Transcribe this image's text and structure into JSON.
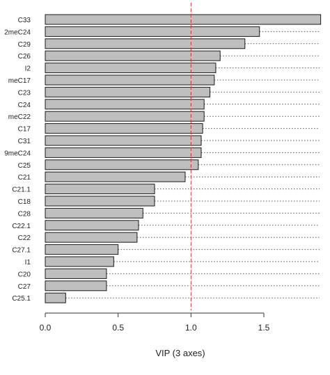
{
  "chart_data": {
    "type": "bar",
    "orientation": "horizontal",
    "categories": [
      "C33",
      "2meC24",
      "C29",
      "C26",
      "I2",
      "meC17",
      "C23",
      "C24",
      "meC22",
      "C17",
      "C31",
      "9meC24",
      "C25",
      "C21",
      "C21.1",
      "C18",
      "C28",
      "C22.1",
      "C22",
      "C27.1",
      "I1",
      "C20",
      "C27",
      "C25.1"
    ],
    "values": [
      1.89,
      1.47,
      1.37,
      1.2,
      1.17,
      1.16,
      1.13,
      1.09,
      1.09,
      1.08,
      1.07,
      1.07,
      1.05,
      0.96,
      0.75,
      0.75,
      0.67,
      0.64,
      0.63,
      0.5,
      0.47,
      0.42,
      0.42,
      0.14
    ],
    "xlabel": "VIP (3 axes)",
    "ylabel": "",
    "title": "",
    "xlim": [
      0,
      1.9
    ],
    "xticks": [
      "0.0",
      "0.5",
      "1.0",
      "1.5"
    ],
    "xtick_values": [
      0,
      0.5,
      1.0,
      1.5
    ],
    "threshold": 1.0,
    "grid": false,
    "leader_lines": "dotted",
    "colors": {
      "bar_fill": "#bebebe",
      "bar_stroke": "#1a1a1a",
      "threshold_line": "#e0302e",
      "leader_line": "#555555"
    }
  }
}
